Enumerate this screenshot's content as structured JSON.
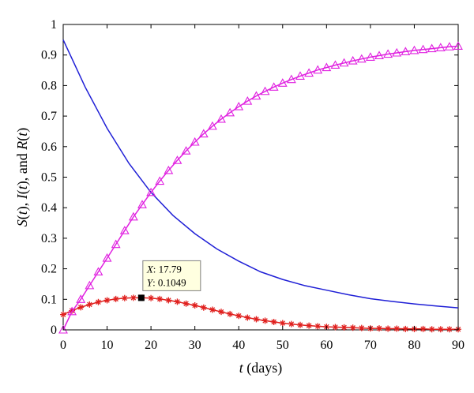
{
  "chart_data": {
    "type": "line",
    "xlabel_var": "t",
    "xlabel_rest": " (days)",
    "ylabel_parts": [
      {
        "text": "S",
        "italic": true
      },
      {
        "text": "(",
        "italic": false
      },
      {
        "text": "t",
        "italic": true
      },
      {
        "text": "), ",
        "italic": false
      },
      {
        "text": "I",
        "italic": true
      },
      {
        "text": "(",
        "italic": false
      },
      {
        "text": "t",
        "italic": true
      },
      {
        "text": "), and ",
        "italic": false
      },
      {
        "text": "R",
        "italic": true
      },
      {
        "text": "(",
        "italic": false
      },
      {
        "text": "t",
        "italic": true
      },
      {
        "text": ")",
        "italic": false
      }
    ],
    "xlim": [
      0,
      90
    ],
    "ylim": [
      0,
      1
    ],
    "x_ticks": [
      0,
      10,
      20,
      30,
      40,
      50,
      60,
      70,
      80,
      90
    ],
    "x_tick_labels": [
      "0",
      "10",
      "20",
      "30",
      "40",
      "50",
      "60",
      "70",
      "80",
      "90"
    ],
    "y_ticks": [
      0,
      0.1,
      0.2,
      0.3,
      0.4,
      0.5,
      0.6,
      0.7,
      0.8,
      0.9,
      1
    ],
    "y_tick_labels": [
      "0",
      "0.1",
      "0.2",
      "0.3",
      "0.4",
      "0.5",
      "0.6",
      "0.7",
      "0.8",
      "0.9",
      "1"
    ],
    "grid": false,
    "series": [
      {
        "key": "S",
        "color": "#1f1fd6",
        "marker": "none",
        "x": [
          0,
          5,
          10,
          15,
          20,
          25,
          30,
          35,
          40,
          45,
          50,
          55,
          60,
          65,
          70,
          75,
          80,
          85,
          90
        ],
        "y": [
          0.95,
          0.795,
          0.66,
          0.545,
          0.45,
          0.375,
          0.315,
          0.265,
          0.225,
          0.19,
          0.165,
          0.145,
          0.13,
          0.115,
          0.102,
          0.093,
          0.085,
          0.078,
          0.072
        ]
      },
      {
        "key": "I",
        "color": "#e0201e",
        "marker": "star",
        "x": [
          0,
          2,
          4,
          6,
          8,
          10,
          12,
          14,
          16,
          18,
          20,
          22,
          24,
          26,
          28,
          30,
          32,
          34,
          36,
          38,
          40,
          42,
          44,
          46,
          48,
          50,
          52,
          54,
          56,
          58,
          60,
          62,
          64,
          66,
          68,
          70,
          72,
          74,
          76,
          78,
          80,
          82,
          84,
          86,
          88,
          90
        ],
        "y": [
          0.05,
          0.063,
          0.074,
          0.083,
          0.091,
          0.097,
          0.101,
          0.104,
          0.105,
          0.105,
          0.104,
          0.101,
          0.097,
          0.092,
          0.086,
          0.08,
          0.073,
          0.066,
          0.059,
          0.052,
          0.046,
          0.04,
          0.035,
          0.03,
          0.026,
          0.022,
          0.019,
          0.016,
          0.014,
          0.012,
          0.01,
          0.009,
          0.008,
          0.007,
          0.006,
          0.005,
          0.005,
          0.004,
          0.004,
          0.003,
          0.003,
          0.003,
          0.002,
          0.002,
          0.002,
          0.002
        ]
      },
      {
        "key": "R",
        "color": "#e020e0",
        "marker": "triangle",
        "x": [
          0,
          2,
          4,
          6,
          8,
          10,
          12,
          14,
          16,
          18,
          20,
          22,
          24,
          26,
          28,
          30,
          32,
          34,
          36,
          38,
          40,
          42,
          44,
          46,
          48,
          50,
          52,
          54,
          56,
          58,
          60,
          62,
          64,
          66,
          68,
          70,
          72,
          74,
          76,
          78,
          80,
          82,
          84,
          86,
          88,
          90
        ],
        "y": [
          0.0,
          0.06,
          0.1,
          0.145,
          0.19,
          0.235,
          0.28,
          0.325,
          0.37,
          0.41,
          0.45,
          0.487,
          0.522,
          0.555,
          0.586,
          0.615,
          0.642,
          0.667,
          0.69,
          0.711,
          0.731,
          0.749,
          0.766,
          0.781,
          0.795,
          0.808,
          0.82,
          0.831,
          0.841,
          0.851,
          0.859,
          0.867,
          0.874,
          0.881,
          0.887,
          0.893,
          0.898,
          0.903,
          0.907,
          0.911,
          0.915,
          0.918,
          0.921,
          0.924,
          0.927,
          0.929
        ]
      }
    ],
    "datatip": {
      "x": 17.79,
      "y": 0.1049,
      "label_x_key": "X",
      "label_x_val": ": 17.79",
      "label_y_key": "Y",
      "label_y_val": ": 0.1049",
      "box_fill": "#ffffe0"
    }
  }
}
